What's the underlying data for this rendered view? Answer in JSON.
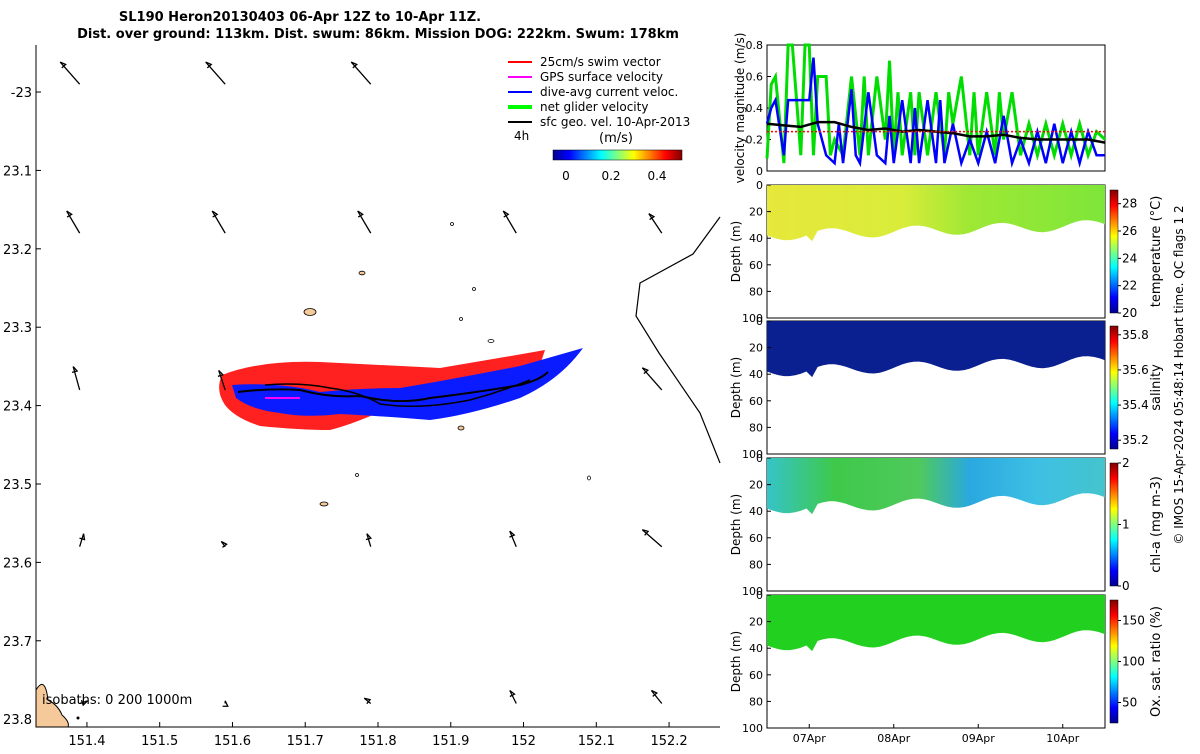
{
  "title": {
    "line1": "SL190 Heron20130403 06-Apr 12Z to 10-Apr 11Z.",
    "line2": "Dist. over ground: 113km. Dist. swum: 86km. Mission DOG: 222km. Swum: 178km"
  },
  "chart_data": [
    {
      "type": "scatter",
      "name": "glider-track-map",
      "xlim": [
        151.33,
        152.27
      ],
      "ylim": [
        -23.81,
        -22.94
      ],
      "x_ticks": [
        151.4,
        151.5,
        151.6,
        151.7,
        151.8,
        151.9,
        152,
        152.1,
        152.2
      ],
      "y_ticks": [
        -23,
        -23.1,
        -23.2,
        -23.3,
        -23.4,
        -23.5,
        -23.6,
        -23.7,
        -23.8
      ],
      "x_tick_labels": [
        "151.4",
        "151.5",
        "151.6",
        "151.7",
        "151.8",
        "151.9",
        "152",
        "152.1",
        "152.2"
      ],
      "y_tick_labels": [
        "-23",
        "23.1",
        "23.2",
        "23.3",
        "23.4",
        "23.5",
        "23.6",
        "23.7",
        "23.8"
      ],
      "legend": [
        {
          "label": "25cm/s swim vector",
          "color": "#ff0000"
        },
        {
          "label": "GPS surface velocity",
          "color": "#ff00ff"
        },
        {
          "label": "dive-avg current veloc.",
          "color": "#0000ff"
        },
        {
          "label": "net glider velocity",
          "color": "#00ff00"
        },
        {
          "label": "sfc geo. vel. 10-Apr-2013",
          "color": "#000000"
        }
      ],
      "legend_note": "4h",
      "colorbar": {
        "label": "(m/s)",
        "ticks": [
          "0",
          "0.2",
          "0.4"
        ],
        "range": [
          0,
          0.5
        ]
      },
      "isobaths_label": "isobaths: 0   200  1000m",
      "track": {
        "lon": [
          151.62,
          151.66,
          151.7,
          151.74,
          151.78,
          151.82,
          151.86,
          151.9,
          151.94,
          151.98,
          152.02,
          152.05
        ],
        "lat": [
          -23.395,
          -23.398,
          -23.4,
          -23.402,
          -23.404,
          -23.402,
          -23.398,
          -23.393,
          -23.388,
          -23.382,
          -23.375,
          -23.368
        ]
      },
      "geo_vel_grid": {
        "lon": [
          151.39,
          151.59,
          151.79,
          151.99,
          152.19
        ],
        "lat": [
          -22.99,
          -23.18,
          -23.38,
          -23.58,
          -23.78
        ],
        "u": [
          [
            -0.15,
            -0.15,
            -0.15,
            0,
            0
          ],
          [
            -0.1,
            -0.1,
            -0.1,
            -0.1,
            -0.1
          ],
          [
            -0.05,
            -0.05,
            0,
            0,
            -0.15
          ],
          [
            0.03,
            -0.03,
            -0.03,
            -0.05,
            -0.15
          ],
          [
            0.06,
            0,
            -0.05,
            -0.05,
            -0.08
          ]
        ],
        "v": [
          [
            0.17,
            0.17,
            0.17,
            0,
            0
          ],
          [
            0.17,
            0.17,
            0.17,
            0.17,
            0.15
          ],
          [
            0.18,
            0.15,
            0,
            0,
            0.17
          ],
          [
            0.1,
            0.04,
            0.1,
            0.12,
            0.13
          ],
          [
            0.02,
            0.02,
            0.04,
            0.1,
            0.1
          ]
        ]
      }
    },
    {
      "type": "line",
      "name": "velocity-magnitude",
      "ylabel": "velocity magnitude (m/s)",
      "ylim": [
        0,
        0.8
      ],
      "y_ticks": [
        "0",
        "0.2",
        "0.4",
        "0.6",
        "0.8"
      ],
      "xlim_days": [
        6.5,
        10.5
      ],
      "series": [
        {
          "name": "net glider velocity",
          "color": "#00dd00",
          "x": [
            6.5,
            6.55,
            6.6,
            6.7,
            6.75,
            6.8,
            6.9,
            6.95,
            7.0,
            7.05,
            7.1,
            7.2,
            7.25,
            7.3,
            7.4,
            7.5,
            7.6,
            7.65,
            7.7,
            7.8,
            7.9,
            7.95,
            8.0,
            8.05,
            8.1,
            8.2,
            8.25,
            8.3,
            8.4,
            8.5,
            8.6,
            8.65,
            8.7,
            8.8,
            8.9,
            8.95,
            9.0,
            9.1,
            9.2,
            9.25,
            9.3,
            9.4,
            9.5,
            9.6,
            9.7,
            9.8,
            9.9,
            10.0,
            10.1,
            10.2,
            10.3,
            10.4,
            10.5
          ],
          "y": [
            0.08,
            0.55,
            0.6,
            0.05,
            0.8,
            0.8,
            0.1,
            0.8,
            0.8,
            0.1,
            0.6,
            0.6,
            0.1,
            0.2,
            0.1,
            0.6,
            0.1,
            0.6,
            0.1,
            0.6,
            0.2,
            0.7,
            0.1,
            0.5,
            0.1,
            0.5,
            0.1,
            0.5,
            0.1,
            0.5,
            0.1,
            0.5,
            0.3,
            0.6,
            0.1,
            0.5,
            0.1,
            0.5,
            0.1,
            0.5,
            0.2,
            0.5,
            0.1,
            0.3,
            0.1,
            0.3,
            0.1,
            0.3,
            0.1,
            0.3,
            0.1,
            0.25,
            0.2
          ]
        },
        {
          "name": "dive-avg current veloc.",
          "color": "#0000ff",
          "x": [
            6.5,
            6.55,
            6.6,
            6.7,
            6.75,
            6.8,
            6.9,
            7.0,
            7.05,
            7.1,
            7.2,
            7.3,
            7.35,
            7.4,
            7.5,
            7.55,
            7.6,
            7.7,
            7.8,
            7.9,
            7.95,
            8.0,
            8.1,
            8.2,
            8.25,
            8.3,
            8.4,
            8.5,
            8.55,
            8.6,
            8.7,
            8.8,
            8.9,
            9.0,
            9.1,
            9.2,
            9.3,
            9.4,
            9.5,
            9.6,
            9.7,
            9.8,
            9.9,
            10.0,
            10.1,
            10.2,
            10.3,
            10.4,
            10.5
          ],
          "y": [
            0.3,
            0.4,
            0.45,
            0.1,
            0.45,
            0.45,
            0.45,
            0.45,
            0.72,
            0.3,
            0.1,
            0.05,
            0.3,
            0.05,
            0.52,
            0.1,
            0.05,
            0.5,
            0.1,
            0.05,
            0.35,
            0.05,
            0.45,
            0.05,
            0.4,
            0.05,
            0.45,
            0.05,
            0.45,
            0.05,
            0.3,
            0.05,
            0.2,
            0.05,
            0.25,
            0.05,
            0.35,
            0.05,
            0.2,
            0.05,
            0.25,
            0.05,
            0.3,
            0.05,
            0.25,
            0.05,
            0.25,
            0.1,
            0.1
          ]
        },
        {
          "name": "sfc geo. vel.",
          "color": "#000000",
          "x": [
            6.5,
            6.7,
            6.9,
            7.1,
            7.3,
            7.5,
            7.7,
            7.9,
            8.1,
            8.3,
            8.5,
            8.7,
            8.9,
            9.1,
            9.3,
            9.5,
            9.7,
            9.9,
            10.1,
            10.3,
            10.5
          ],
          "y": [
            0.3,
            0.29,
            0.28,
            0.31,
            0.31,
            0.28,
            0.26,
            0.27,
            0.25,
            0.26,
            0.25,
            0.24,
            0.22,
            0.22,
            0.23,
            0.21,
            0.2,
            0.2,
            0.2,
            0.2,
            0.18
          ]
        },
        {
          "name": "25cm/s swim vector",
          "color": "#ff0000",
          "x": [
            6.5,
            10.5
          ],
          "y": [
            0.25,
            0.25
          ]
        }
      ]
    },
    {
      "type": "heatmap",
      "name": "temperature-section",
      "ylabel": "Depth (m)",
      "ylim": [
        0,
        100
      ],
      "y_ticks": [
        "0",
        "20",
        "40",
        "60",
        "80",
        "100"
      ],
      "colorbar": {
        "label": "temperature (°C)",
        "ticks": [
          "20",
          "22",
          "24",
          "26",
          "28"
        ],
        "range": [
          20,
          29
        ]
      }
    },
    {
      "type": "heatmap",
      "name": "salinity-section",
      "ylabel": "Depth (m)",
      "ylim": [
        0,
        100
      ],
      "y_ticks": [
        "0",
        "20",
        "40",
        "60",
        "80",
        "100"
      ],
      "colorbar": {
        "label": "salinity",
        "ticks": [
          "35.2",
          "35.4",
          "35.6",
          "35.8"
        ],
        "range": [
          35.15,
          35.85
        ]
      }
    },
    {
      "type": "heatmap",
      "name": "chla-section",
      "ylabel": "Depth (m)",
      "ylim": [
        0,
        100
      ],
      "y_ticks": [
        "0",
        "20",
        "40",
        "60",
        "80",
        "100"
      ],
      "colorbar": {
        "label": "chl-a (mg m-3)",
        "ticks": [
          "0",
          "1",
          "2"
        ],
        "range": [
          0,
          2
        ]
      }
    },
    {
      "type": "heatmap",
      "name": "oxygen-section",
      "ylabel": "Depth (m)",
      "ylim": [
        0,
        100
      ],
      "y_ticks": [
        "0",
        "20",
        "40",
        "60",
        "80",
        "100"
      ],
      "x_tick_labels": [
        "07Apr",
        "08Apr",
        "09Apr",
        "10Apr"
      ],
      "colorbar": {
        "label": "Ox. sat. ratio (%)",
        "ticks": [
          "50",
          "100",
          "150"
        ],
        "range": [
          25,
          175
        ]
      }
    }
  ],
  "footer": {
    "credit": "© IMOS 15-Apr-2024 05:48:14 Hobart time. QC flags 1  2"
  }
}
